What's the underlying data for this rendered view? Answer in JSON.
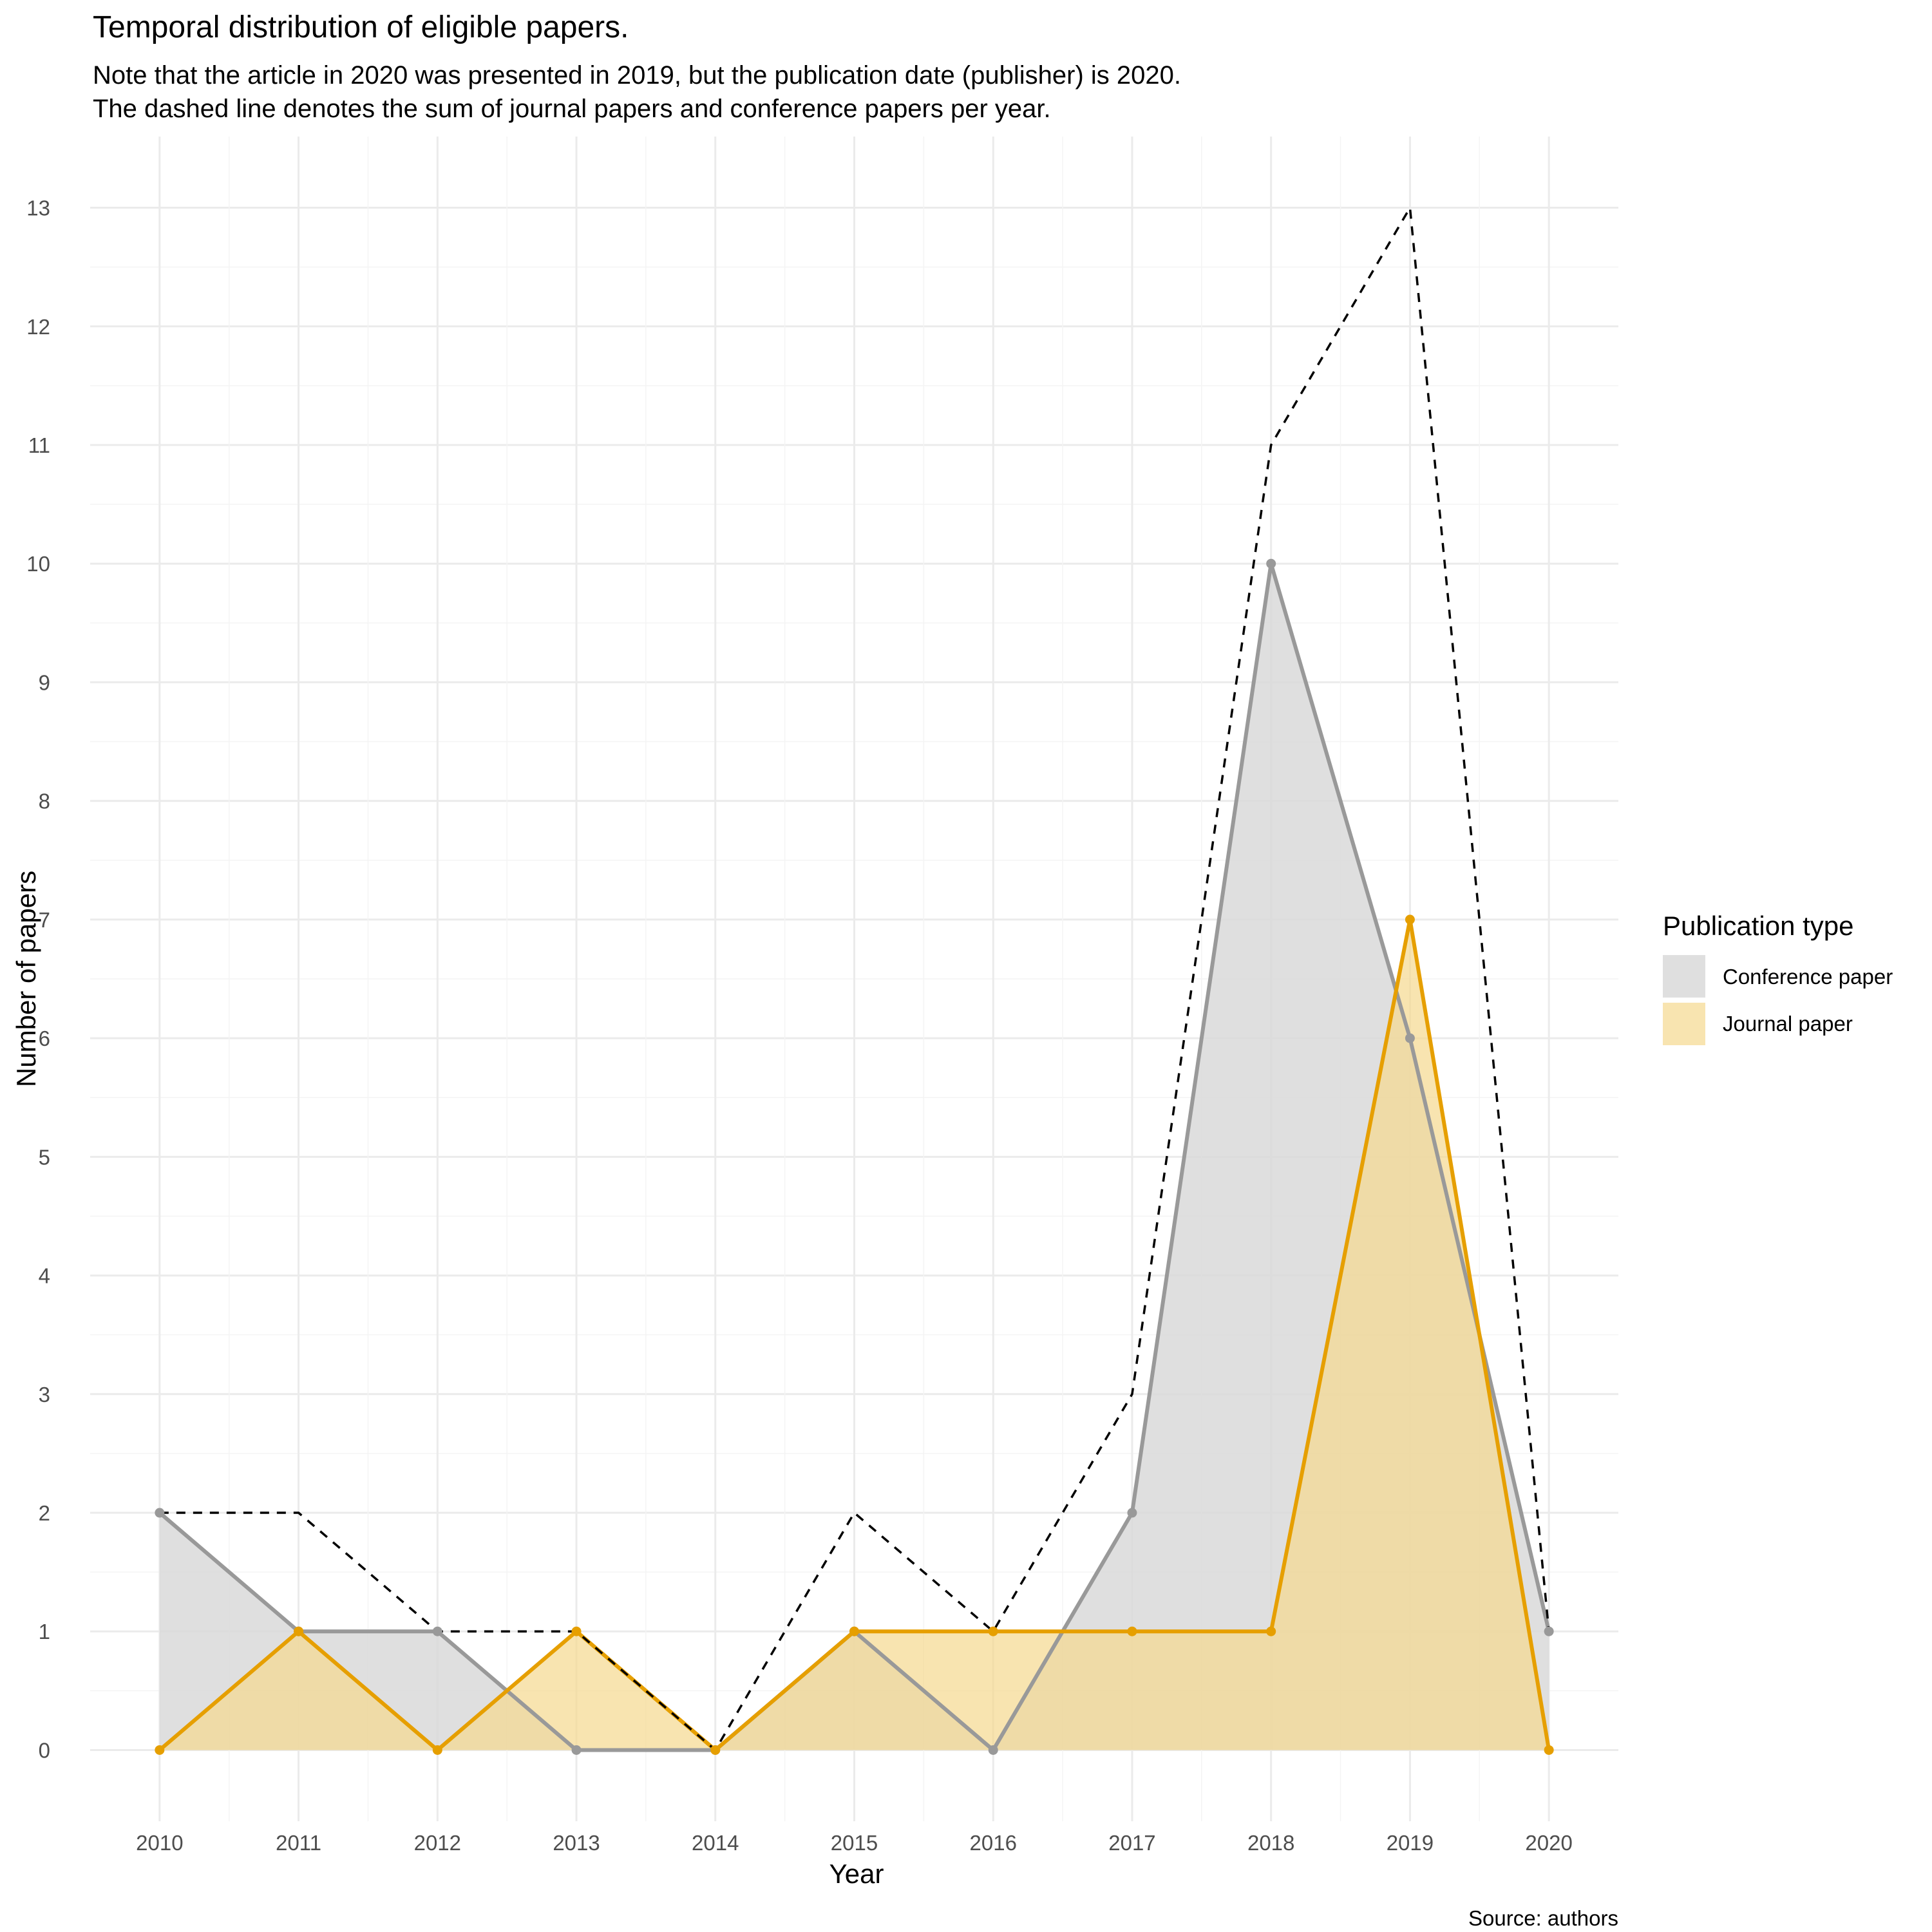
{
  "chart_data": {
    "type": "area",
    "title": "Temporal distribution of eligible papers.",
    "subtitle_lines": [
      "Note that the article in 2020 was presented in 2019, but the publication date (publisher) is 2020.",
      "The dashed line denotes the sum of journal papers and conference papers per year."
    ],
    "xlabel": "Year",
    "ylabel": "Number of papers",
    "caption": "Source: authors",
    "x": [
      2010,
      2011,
      2012,
      2013,
      2014,
      2015,
      2016,
      2017,
      2018,
      2019,
      2020
    ],
    "x_tick_labels": [
      "2010",
      "2011",
      "2012",
      "2013",
      "2014",
      "2015",
      "2016",
      "2017",
      "2018",
      "2019",
      "2020"
    ],
    "y_ticks": [
      0,
      1,
      2,
      3,
      4,
      5,
      6,
      7,
      8,
      9,
      10,
      11,
      12,
      13
    ],
    "y_tick_labels": [
      "0",
      "1",
      "2",
      "3",
      "4",
      "5",
      "6",
      "7",
      "8",
      "9",
      "10",
      "11",
      "12",
      "13"
    ],
    "ylim": [
      -0.6,
      13.6
    ],
    "xlim": [
      2009.5,
      2020.5
    ],
    "grid": true,
    "legend": {
      "title": "Publication type",
      "position": "right"
    },
    "series": [
      {
        "name": "Conference paper",
        "values": [
          2,
          1,
          1,
          0,
          0,
          1,
          0,
          2,
          10,
          6,
          1
        ],
        "line_color": "#999999",
        "fill_color": "#d9d9d9",
        "fill_opacity": 0.85
      },
      {
        "name": "Journal paper",
        "values": [
          0,
          1,
          0,
          1,
          0,
          1,
          1,
          1,
          1,
          7,
          0
        ],
        "line_color": "#E69F00",
        "fill_color": "#F5D98E",
        "fill_opacity": 0.7
      }
    ],
    "total": {
      "values": [
        2,
        2,
        1,
        1,
        0,
        2,
        1,
        3,
        11,
        13,
        1
      ],
      "line_color": "#000000",
      "dashed": true
    }
  }
}
